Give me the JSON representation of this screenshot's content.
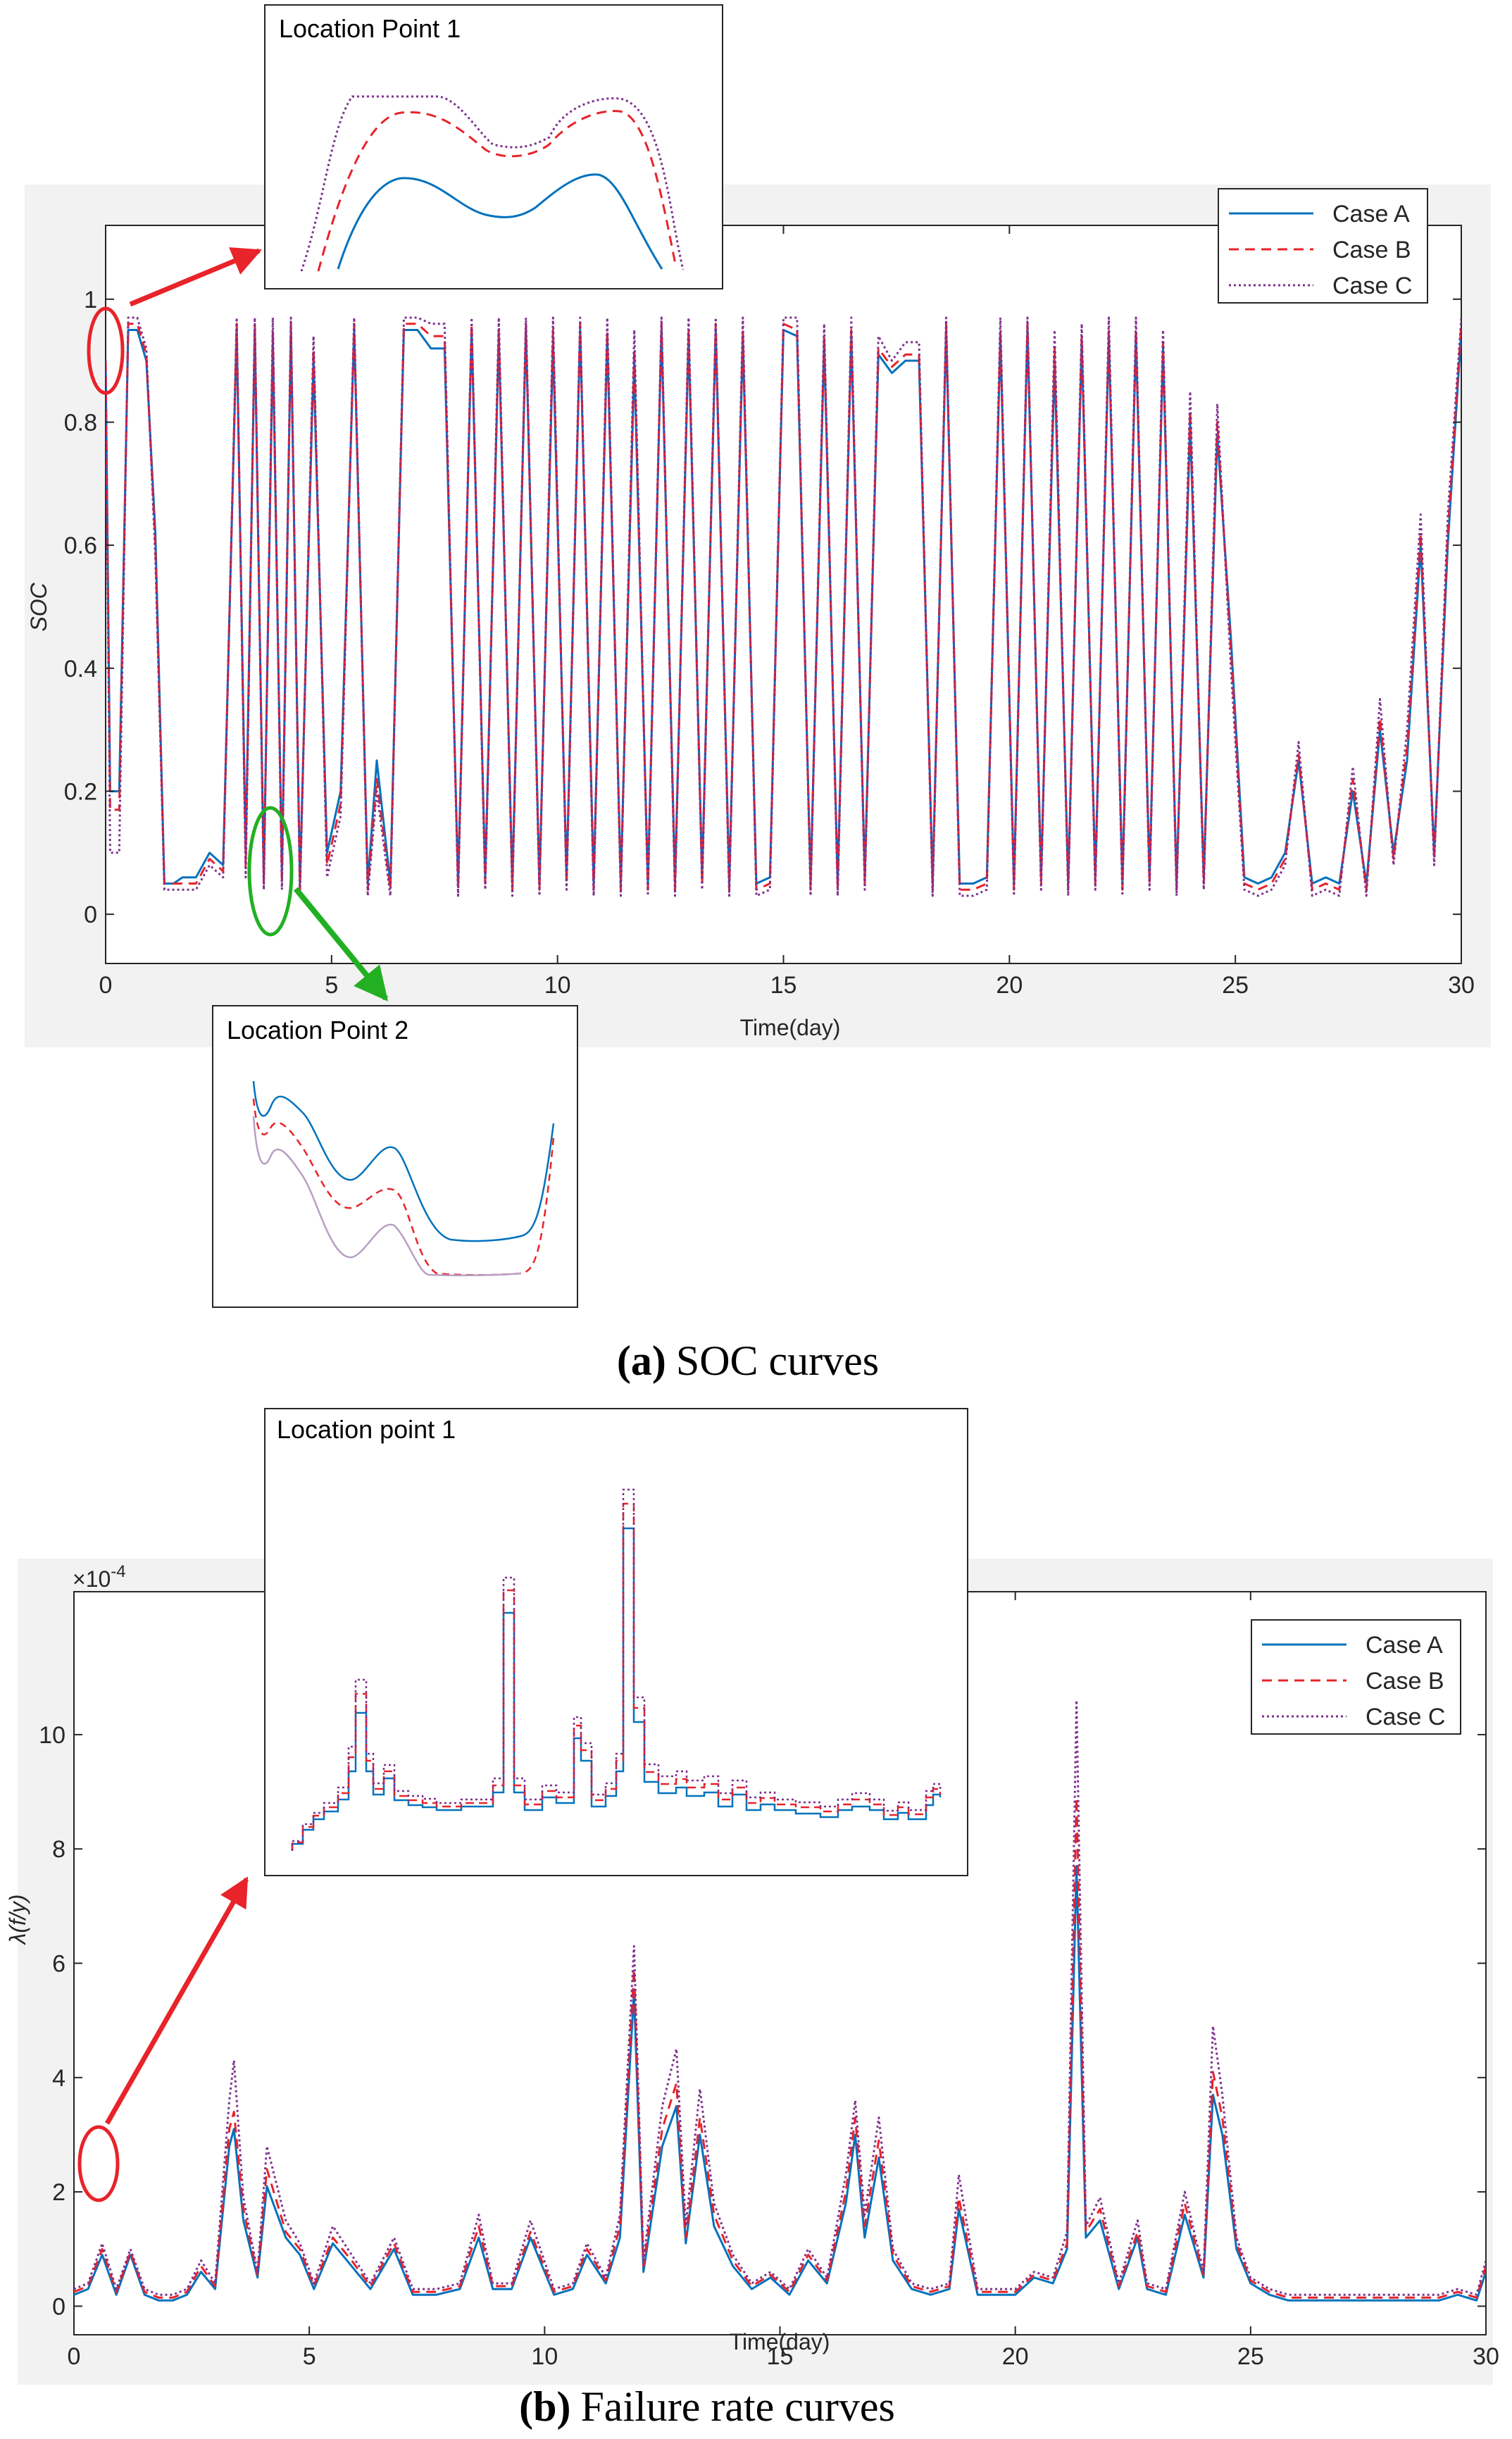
{
  "chart_data": [
    {
      "panel": "a",
      "type": "line",
      "caption_letter": "(a)",
      "caption_text": "SOC curves",
      "xlabel": "Time(day)",
      "ylabel": "SOC",
      "xlim": [
        0,
        30
      ],
      "ylim": [
        -0.08,
        1.12
      ],
      "xticks": [
        "0",
        "5",
        "10",
        "15",
        "20",
        "25",
        "30"
      ],
      "yticks": [
        "0",
        "0.2",
        "0.4",
        "0.6",
        "0.8",
        "1"
      ],
      "legend_position": "top-right",
      "grid": false,
      "x": [
        0.0,
        0.1,
        0.3,
        0.5,
        0.7,
        0.9,
        1.1,
        1.3,
        1.5,
        1.7,
        2.0,
        2.3,
        2.6,
        2.9,
        3.1,
        3.3,
        3.5,
        3.7,
        3.9,
        4.1,
        4.3,
        4.6,
        4.9,
        5.2,
        5.5,
        5.8,
        6.0,
        6.3,
        6.6,
        6.9,
        7.2,
        7.5,
        7.8,
        8.1,
        8.4,
        8.7,
        9.0,
        9.3,
        9.6,
        9.9,
        10.2,
        10.5,
        10.8,
        11.1,
        11.4,
        11.7,
        12.0,
        12.3,
        12.6,
        12.9,
        13.2,
        13.5,
        13.8,
        14.1,
        14.4,
        14.7,
        15.0,
        15.3,
        15.6,
        15.9,
        16.2,
        16.5,
        16.8,
        17.1,
        17.4,
        17.7,
        18.0,
        18.3,
        18.6,
        18.9,
        19.2,
        19.5,
        19.8,
        20.1,
        20.4,
        20.7,
        21.0,
        21.3,
        21.6,
        21.9,
        22.2,
        22.5,
        22.8,
        23.1,
        23.4,
        23.7,
        24.0,
        24.3,
        24.6,
        24.9,
        25.2,
        25.5,
        25.8,
        26.1,
        26.4,
        26.7,
        27.0,
        27.3,
        27.6,
        27.9,
        28.2,
        28.5,
        28.8,
        29.1,
        29.4,
        29.7,
        30.0
      ],
      "series": [
        {
          "name": "Case A",
          "color": "#0072BD",
          "dash": "solid",
          "values": [
            0.9,
            0.2,
            0.2,
            0.95,
            0.95,
            0.9,
            0.62,
            0.05,
            0.05,
            0.06,
            0.06,
            0.1,
            0.08,
            0.95,
            0.1,
            0.95,
            0.06,
            0.93,
            0.07,
            0.95,
            0.05,
            0.9,
            0.1,
            0.2,
            0.95,
            0.05,
            0.25,
            0.05,
            0.95,
            0.95,
            0.92,
            0.92,
            0.05,
            0.95,
            0.06,
            0.94,
            0.05,
            0.95,
            0.05,
            0.93,
            0.06,
            0.95,
            0.05,
            0.94,
            0.05,
            0.9,
            0.05,
            0.95,
            0.05,
            0.94,
            0.06,
            0.95,
            0.05,
            0.94,
            0.05,
            0.06,
            0.95,
            0.94,
            0.05,
            0.93,
            0.05,
            0.94,
            0.06,
            0.91,
            0.88,
            0.9,
            0.9,
            0.05,
            0.95,
            0.05,
            0.05,
            0.06,
            0.94,
            0.05,
            0.95,
            0.06,
            0.9,
            0.05,
            0.93,
            0.06,
            0.94,
            0.05,
            0.94,
            0.06,
            0.92,
            0.05,
            0.8,
            0.06,
            0.78,
            0.45,
            0.06,
            0.05,
            0.06,
            0.1,
            0.25,
            0.05,
            0.06,
            0.05,
            0.2,
            0.05,
            0.3,
            0.1,
            0.25,
            0.6,
            0.1,
            0.6,
            0.95
          ]
        },
        {
          "name": "Case B",
          "color": "#E8232A",
          "dash": "14,9",
          "values": [
            0.9,
            0.17,
            0.17,
            0.96,
            0.96,
            0.91,
            0.6,
            0.05,
            0.05,
            0.05,
            0.05,
            0.09,
            0.07,
            0.96,
            0.08,
            0.96,
            0.05,
            0.95,
            0.05,
            0.96,
            0.04,
            0.92,
            0.08,
            0.18,
            0.96,
            0.04,
            0.22,
            0.04,
            0.96,
            0.96,
            0.94,
            0.94,
            0.04,
            0.96,
            0.05,
            0.95,
            0.04,
            0.96,
            0.04,
            0.95,
            0.05,
            0.96,
            0.04,
            0.95,
            0.04,
            0.92,
            0.04,
            0.96,
            0.04,
            0.95,
            0.05,
            0.96,
            0.04,
            0.95,
            0.04,
            0.05,
            0.96,
            0.95,
            0.04,
            0.94,
            0.04,
            0.95,
            0.05,
            0.92,
            0.89,
            0.91,
            0.91,
            0.04,
            0.96,
            0.04,
            0.04,
            0.05,
            0.95,
            0.04,
            0.96,
            0.05,
            0.92,
            0.04,
            0.94,
            0.05,
            0.95,
            0.04,
            0.95,
            0.05,
            0.93,
            0.04,
            0.82,
            0.05,
            0.8,
            0.43,
            0.05,
            0.04,
            0.05,
            0.09,
            0.26,
            0.04,
            0.05,
            0.04,
            0.22,
            0.04,
            0.32,
            0.09,
            0.27,
            0.62,
            0.09,
            0.62,
            0.96
          ]
        },
        {
          "name": "Case C",
          "color": "#7E2F8E",
          "dash": "3,4",
          "values": [
            0.9,
            0.1,
            0.1,
            0.97,
            0.97,
            0.92,
            0.58,
            0.04,
            0.04,
            0.04,
            0.04,
            0.08,
            0.06,
            0.97,
            0.06,
            0.97,
            0.04,
            0.97,
            0.04,
            0.97,
            0.03,
            0.94,
            0.06,
            0.16,
            0.97,
            0.03,
            0.2,
            0.03,
            0.97,
            0.97,
            0.96,
            0.96,
            0.03,
            0.97,
            0.04,
            0.97,
            0.03,
            0.97,
            0.03,
            0.97,
            0.04,
            0.97,
            0.03,
            0.97,
            0.03,
            0.95,
            0.03,
            0.97,
            0.03,
            0.97,
            0.04,
            0.97,
            0.03,
            0.97,
            0.03,
            0.04,
            0.97,
            0.97,
            0.03,
            0.96,
            0.03,
            0.97,
            0.04,
            0.94,
            0.9,
            0.93,
            0.93,
            0.03,
            0.97,
            0.03,
            0.03,
            0.04,
            0.97,
            0.03,
            0.97,
            0.04,
            0.95,
            0.03,
            0.96,
            0.04,
            0.97,
            0.03,
            0.97,
            0.04,
            0.95,
            0.03,
            0.85,
            0.04,
            0.83,
            0.4,
            0.04,
            0.03,
            0.04,
            0.08,
            0.28,
            0.03,
            0.04,
            0.03,
            0.24,
            0.03,
            0.35,
            0.08,
            0.3,
            0.65,
            0.08,
            0.65,
            0.97
          ]
        }
      ],
      "insets": [
        {
          "title": "Location Point 1"
        },
        {
          "title": "Location Point 2"
        }
      ]
    },
    {
      "panel": "b",
      "type": "line",
      "caption_letter": "(b)",
      "caption_text": "Failure rate curves",
      "xlabel": "Time(day)",
      "ylabel": "λ(f/y)",
      "exponent_label": "×10",
      "exponent_power": "-4",
      "xlim": [
        0,
        30
      ],
      "ylim": [
        -0.5,
        12.5
      ],
      "xticks": [
        "0",
        "5",
        "10",
        "15",
        "20",
        "25",
        "30"
      ],
      "yticks": [
        "0",
        "2",
        "4",
        "6",
        "8",
        "10"
      ],
      "legend_position": "top-right",
      "grid": false,
      "x": [
        0.0,
        0.3,
        0.6,
        0.9,
        1.2,
        1.5,
        1.8,
        2.1,
        2.4,
        2.7,
        3.0,
        3.3,
        3.4,
        3.6,
        3.9,
        4.1,
        4.5,
        4.8,
        5.1,
        5.5,
        5.9,
        6.3,
        6.8,
        7.2,
        7.7,
        8.2,
        8.6,
        8.9,
        9.3,
        9.7,
        10.2,
        10.6,
        10.9,
        11.3,
        11.6,
        11.9,
        12.1,
        12.5,
        12.8,
        13.0,
        13.3,
        13.6,
        14.0,
        14.4,
        14.8,
        15.2,
        15.6,
        16.0,
        16.4,
        16.6,
        16.8,
        17.1,
        17.4,
        17.8,
        18.2,
        18.6,
        18.8,
        19.2,
        19.6,
        20.0,
        20.4,
        20.8,
        21.1,
        21.3,
        21.5,
        21.8,
        22.2,
        22.6,
        22.8,
        23.2,
        23.6,
        24.0,
        24.2,
        24.4,
        24.7,
        25.0,
        25.4,
        25.8,
        26.2,
        26.6,
        27.0,
        27.4,
        27.8,
        28.2,
        28.6,
        29.0,
        29.4,
        29.8,
        30.0
      ],
      "series": [
        {
          "name": "Case A",
          "color": "#0072BD",
          "dash": "solid",
          "values": [
            0.2,
            0.3,
            0.9,
            0.2,
            0.9,
            0.2,
            0.1,
            0.1,
            0.2,
            0.6,
            0.3,
            2.8,
            3.1,
            1.5,
            0.5,
            2.1,
            1.2,
            0.9,
            0.3,
            1.1,
            0.7,
            0.3,
            1.0,
            0.2,
            0.2,
            0.3,
            1.2,
            0.3,
            0.3,
            1.2,
            0.2,
            0.3,
            0.9,
            0.4,
            1.2,
            5.5,
            0.6,
            2.8,
            3.5,
            1.1,
            3.0,
            1.4,
            0.7,
            0.3,
            0.5,
            0.2,
            0.8,
            0.4,
            1.8,
            3.0,
            1.2,
            2.6,
            0.8,
            0.3,
            0.2,
            0.3,
            1.7,
            0.2,
            0.2,
            0.2,
            0.5,
            0.4,
            1.0,
            7.7,
            1.2,
            1.5,
            0.3,
            1.2,
            0.3,
            0.2,
            1.6,
            0.5,
            3.7,
            3.0,
            1.0,
            0.4,
            0.2,
            0.1,
            0.1,
            0.1,
            0.1,
            0.1,
            0.1,
            0.1,
            0.1,
            0.1,
            0.2,
            0.1,
            0.6
          ]
        },
        {
          "name": "Case B",
          "color": "#E8232A",
          "dash": "14,9",
          "values": [
            0.25,
            0.35,
            1.0,
            0.25,
            0.95,
            0.25,
            0.15,
            0.15,
            0.25,
            0.7,
            0.35,
            3.1,
            3.4,
            1.7,
            0.55,
            2.4,
            1.3,
            1.0,
            0.35,
            1.2,
            0.8,
            0.35,
            1.1,
            0.25,
            0.25,
            0.35,
            1.4,
            0.35,
            0.35,
            1.3,
            0.25,
            0.35,
            1.0,
            0.45,
            1.4,
            5.9,
            0.7,
            3.1,
            3.9,
            1.2,
            3.3,
            1.6,
            0.8,
            0.35,
            0.55,
            0.25,
            0.9,
            0.45,
            2.0,
            3.3,
            1.4,
            2.9,
            0.9,
            0.35,
            0.25,
            0.35,
            1.9,
            0.25,
            0.25,
            0.25,
            0.55,
            0.45,
            1.1,
            8.9,
            1.3,
            1.7,
            0.35,
            1.3,
            0.35,
            0.25,
            1.8,
            0.55,
            4.1,
            3.3,
            1.1,
            0.45,
            0.25,
            0.15,
            0.15,
            0.15,
            0.15,
            0.15,
            0.15,
            0.15,
            0.15,
            0.15,
            0.25,
            0.15,
            0.7
          ]
        },
        {
          "name": "Case C",
          "color": "#7E2F8E",
          "dash": "3,4",
          "values": [
            0.3,
            0.4,
            1.1,
            0.3,
            1.0,
            0.3,
            0.2,
            0.2,
            0.3,
            0.8,
            0.4,
            3.6,
            4.3,
            1.9,
            0.6,
            2.8,
            1.5,
            1.1,
            0.4,
            1.4,
            0.9,
            0.4,
            1.2,
            0.3,
            0.3,
            0.4,
            1.6,
            0.4,
            0.4,
            1.5,
            0.3,
            0.4,
            1.1,
            0.5,
            1.6,
            6.3,
            0.8,
            3.5,
            4.5,
            1.4,
            3.8,
            1.8,
            0.9,
            0.4,
            0.6,
            0.3,
            1.0,
            0.5,
            2.3,
            3.6,
            1.6,
            3.3,
            1.0,
            0.4,
            0.3,
            0.4,
            2.3,
            0.3,
            0.3,
            0.3,
            0.6,
            0.5,
            1.3,
            10.6,
            1.4,
            1.9,
            0.4,
            1.5,
            0.4,
            0.3,
            2.0,
            0.6,
            4.9,
            3.7,
            1.2,
            0.5,
            0.3,
            0.2,
            0.2,
            0.2,
            0.2,
            0.2,
            0.2,
            0.2,
            0.2,
            0.2,
            0.3,
            0.2,
            0.8
          ]
        }
      ],
      "insets": [
        {
          "title": "Location point 1"
        }
      ]
    }
  ]
}
